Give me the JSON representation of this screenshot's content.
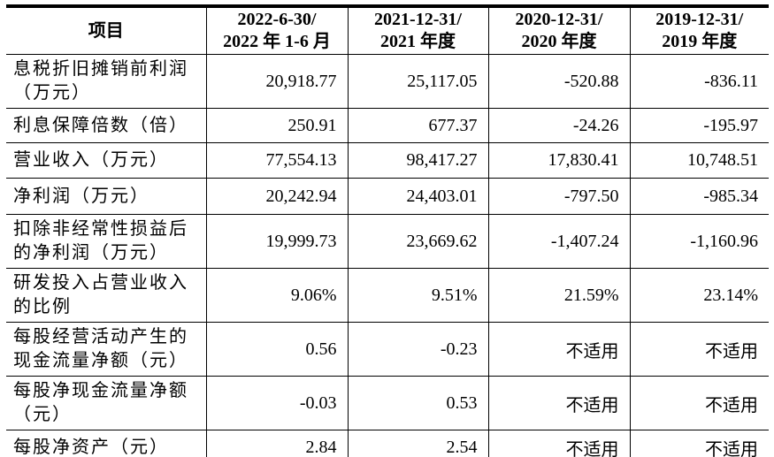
{
  "table": {
    "header": {
      "item_label": "项目",
      "periods": [
        "2022-6-30/\n2022 年 1-6 月",
        "2021-12-31/\n2021 年度",
        "2020-12-31/\n2020 年度",
        "2019-12-31/\n2019 年度"
      ]
    },
    "rows": [
      {
        "label": "息税折旧摊销前利润\n（万元）",
        "values": [
          "20,918.77",
          "25,117.05",
          "-520.88",
          "-836.11"
        ]
      },
      {
        "label": "利息保障倍数（倍）",
        "values": [
          "250.91",
          "677.37",
          "-24.26",
          "-195.97"
        ]
      },
      {
        "label": "营业收入（万元）",
        "values": [
          "77,554.13",
          "98,417.27",
          "17,830.41",
          "10,748.51"
        ]
      },
      {
        "label": "净利润（万元）",
        "values": [
          "20,242.94",
          "24,403.01",
          "-797.50",
          "-985.34"
        ]
      },
      {
        "label": "扣除非经常性损益后\n的净利润（万元）",
        "values": [
          "19,999.73",
          "23,669.62",
          "-1,407.24",
          "-1,160.96"
        ]
      },
      {
        "label": "研发投入占营业收入\n的比例",
        "values": [
          "9.06%",
          "9.51%",
          "21.59%",
          "23.14%"
        ]
      },
      {
        "label": "每股经营活动产生的\n现金流量净额（元）",
        "values": [
          "0.56",
          "-0.23",
          "不适用",
          "不适用"
        ]
      },
      {
        "label": "每股净现金流量净额\n（元）",
        "values": [
          "-0.03",
          "0.53",
          "不适用",
          "不适用"
        ]
      },
      {
        "label": "每股净资产（元）",
        "values": [
          "2.84",
          "2.54",
          "不适用",
          "不适用"
        ]
      }
    ]
  },
  "colors": {
    "text": "#000000",
    "border": "#000000",
    "background": "#ffffff"
  }
}
